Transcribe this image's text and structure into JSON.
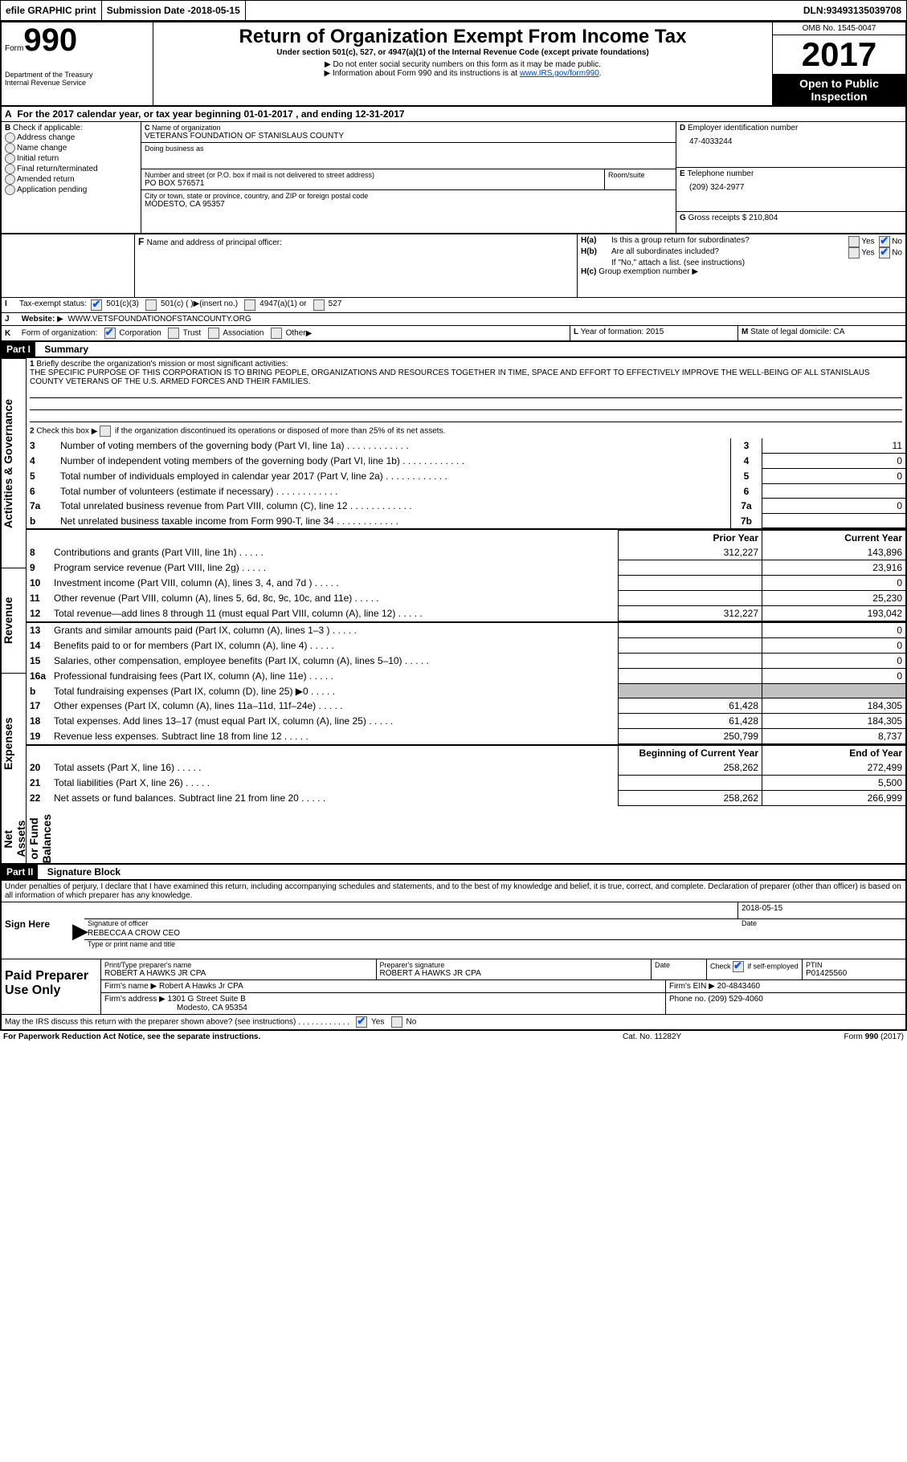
{
  "header_bar": {
    "efile": "efile GRAPHIC print",
    "sub_label": "Submission Date - ",
    "sub_date": "2018-05-15",
    "dln_label": "DLN: ",
    "dln": "93493135039708"
  },
  "title_block": {
    "form_prefix": "Form",
    "form_number": "990",
    "dept1": "Department of the Treasury",
    "dept2": "Internal Revenue Service",
    "title": "Return of Organization Exempt From Income Tax",
    "subtitle": "Under section 501(c), 527, or 4947(a)(1) of the Internal Revenue Code (except private foundations)",
    "note1": "Do not enter social security numbers on this form as it may be made public.",
    "note2_pre": "Information about Form 990 and its instructions is at ",
    "note2_link": "www.IRS.gov/form990",
    "omb": "OMB No. 1545-0047",
    "year": "2017",
    "open": "Open to Public Inspection"
  },
  "section_a": {
    "line": "For the 2017 calendar year, or tax year beginning 01-01-2017   , and ending 12-31-2017",
    "b_label": "Check if applicable:",
    "b_opts": [
      "Address change",
      "Name change",
      "Initial return",
      "Final return/terminated",
      "Amended return",
      "Application pending"
    ],
    "c_name_label": "Name of organization",
    "c_name": "VETERANS FOUNDATION OF STANISLAUS COUNTY",
    "dba_label": "Doing business as",
    "addr_label": "Number and street (or P.O. box if mail is not delivered to street address)",
    "room_label": "Room/suite",
    "addr": "PO BOX 576571",
    "city_label": "City or town, state or province, country, and ZIP or foreign postal code",
    "city": "MODESTO, CA  95357",
    "d_label": "Employer identification number",
    "d_val": "47-4033244",
    "e_label": "Telephone number",
    "e_val": "(209) 324-2977",
    "g_label": "Gross receipts $ ",
    "g_val": "210,804",
    "f_label": "Name and address of principal officer:",
    "ha_label": "Is this a group return for subordinates?",
    "hb_label": "Are all subordinates included?",
    "h_no_note": "If \"No,\" attach a list. (see instructions)",
    "hc_label": "Group exemption number ",
    "yes": "Yes",
    "no": "No"
  },
  "tax_exempt": {
    "label": "Tax-exempt status:",
    "o1": "501(c)(3)",
    "o2": "501(c) (  ) ",
    "o2_ins": "(insert no.)",
    "o3": "4947(a)(1) or",
    "o4": "527"
  },
  "website": {
    "label": "Website: ",
    "value": "WWW.VETSFOUNDATIONOFSTANCOUNTY.ORG"
  },
  "k_line": {
    "label": "Form of organization:",
    "opts": [
      "Corporation",
      "Trust",
      "Association",
      "Other"
    ],
    "l_label": "Year of formation: ",
    "l_val": "2015",
    "m_label": "State of legal domicile: ",
    "m_val": "CA"
  },
  "part1": {
    "title": "Part I",
    "summary": "Summary",
    "side_label_1": "Activities & Governance",
    "side_label_2": "Revenue",
    "side_label_3": "Expenses",
    "side_label_4": "Net Assets or Fund Balances",
    "l1_label": "Briefly describe the organization's mission or most significant activities:",
    "l1_text": "THE SPECIFIC PURPOSE OF THIS CORPORATION IS TO BRING PEOPLE, ORGANIZATIONS AND RESOURCES TOGETHER IN TIME, SPACE AND EFFORT TO EFFECTIVELY IMPROVE THE WELL-BEING OF ALL STANISLAUS COUNTY VETERANS OF THE U.S. ARMED FORCES AND THEIR FAMILIES.",
    "l2": "Check this box ▶    if the organization discontinued its operations or disposed of more than 25% of its net assets.",
    "rows_gov": [
      {
        "n": "3",
        "t": "Number of voting members of the governing body (Part VI, line 1a)",
        "box": "3",
        "v": "11"
      },
      {
        "n": "4",
        "t": "Number of independent voting members of the governing body (Part VI, line 1b)",
        "box": "4",
        "v": "0"
      },
      {
        "n": "5",
        "t": "Total number of individuals employed in calendar year 2017 (Part V, line 2a)",
        "box": "5",
        "v": "0"
      },
      {
        "n": "6",
        "t": "Total number of volunteers (estimate if necessary)",
        "box": "6",
        "v": ""
      },
      {
        "n": "7a",
        "t": "Total unrelated business revenue from Part VIII, column (C), line 12",
        "box": "7a",
        "v": "0"
      },
      {
        "n": "b",
        "t": "Net unrelated business taxable income from Form 990-T, line 34",
        "box": "7b",
        "v": ""
      }
    ],
    "col_prior": "Prior Year",
    "col_current": "Current Year",
    "rows_rev": [
      {
        "n": "8",
        "t": "Contributions and grants (Part VIII, line 1h)",
        "p": "312,227",
        "c": "143,896"
      },
      {
        "n": "9",
        "t": "Program service revenue (Part VIII, line 2g)",
        "p": "",
        "c": "23,916"
      },
      {
        "n": "10",
        "t": "Investment income (Part VIII, column (A), lines 3, 4, and 7d )",
        "p": "",
        "c": "0"
      },
      {
        "n": "11",
        "t": "Other revenue (Part VIII, column (A), lines 5, 6d, 8c, 9c, 10c, and 11e)",
        "p": "",
        "c": "25,230"
      },
      {
        "n": "12",
        "t": "Total revenue—add lines 8 through 11 (must equal Part VIII, column (A), line 12)",
        "p": "312,227",
        "c": "193,042"
      }
    ],
    "rows_exp": [
      {
        "n": "13",
        "t": "Grants and similar amounts paid (Part IX, column (A), lines 1–3 )",
        "p": "",
        "c": "0"
      },
      {
        "n": "14",
        "t": "Benefits paid to or for members (Part IX, column (A), line 4)",
        "p": "",
        "c": "0"
      },
      {
        "n": "15",
        "t": "Salaries, other compensation, employee benefits (Part IX, column (A), lines 5–10)",
        "p": "",
        "c": "0"
      },
      {
        "n": "16a",
        "t": "Professional fundraising fees (Part IX, column (A), line 11e)",
        "p": "",
        "c": "0"
      },
      {
        "n": "b",
        "t": "Total fundraising expenses (Part IX, column (D), line 25) ▶0",
        "p": "GREY",
        "c": "GREY"
      },
      {
        "n": "17",
        "t": "Other expenses (Part IX, column (A), lines 11a–11d, 11f–24e)",
        "p": "61,428",
        "c": "184,305"
      },
      {
        "n": "18",
        "t": "Total expenses. Add lines 13–17 (must equal Part IX, column (A), line 25)",
        "p": "61,428",
        "c": "184,305"
      },
      {
        "n": "19",
        "t": "Revenue less expenses. Subtract line 18 from line 12",
        "p": "250,799",
        "c": "8,737"
      }
    ],
    "col_begin": "Beginning of Current Year",
    "col_end": "End of Year",
    "rows_net": [
      {
        "n": "20",
        "t": "Total assets (Part X, line 16)",
        "p": "258,262",
        "c": "272,499"
      },
      {
        "n": "21",
        "t": "Total liabilities (Part X, line 26)",
        "p": "",
        "c": "5,500"
      },
      {
        "n": "22",
        "t": "Net assets or fund balances. Subtract line 21 from line 20",
        "p": "258,262",
        "c": "266,999"
      }
    ]
  },
  "part2": {
    "title": "Part II",
    "name": "Signature Block",
    "decl": "Under penalties of perjury, I declare that I have examined this return, including accompanying schedules and statements, and to the best of my knowledge and belief, it is true, correct, and complete. Declaration of preparer (other than officer) is based on all information of which preparer has any knowledge.",
    "sign_here": "Sign Here",
    "sig_officer": "Signature of officer",
    "date_label": "Date",
    "sig_date": "2018-05-15",
    "officer_name": "REBECCA A CROW CEO",
    "type_name": "Type or print name and title",
    "paid": "Paid Preparer Use Only",
    "pp_name_label": "Print/Type preparer's name",
    "pp_name": "ROBERT A HAWKS JR CPA",
    "pp_sig_label": "Preparer's signature",
    "pp_sig": "ROBERT A HAWKS JR CPA",
    "pp_date": "Date",
    "check_if": "Check",
    "self_emp": "if self-employed",
    "ptin_label": "PTIN",
    "ptin": "P01425560",
    "firm_name_label": "Firm's name   ",
    "firm_name": "Robert A Hawks Jr CPA",
    "firm_ein_label": "Firm's EIN ",
    "firm_ein": "20-4843460",
    "firm_addr_label": "Firm's address ",
    "firm_addr1": "1301 G Street Suite B",
    "firm_addr2": "Modesto, CA  95354",
    "phone_label": "Phone no. ",
    "phone": "(209) 529-4060",
    "irs_discuss": "May the IRS discuss this return with the preparer shown above? (see instructions)"
  },
  "footer": {
    "pra": "For Paperwork Reduction Act Notice, see the separate instructions.",
    "cat": "Cat. No. 11282Y",
    "form": "Form ",
    "formno": "990",
    "formyr": " (2017)"
  }
}
